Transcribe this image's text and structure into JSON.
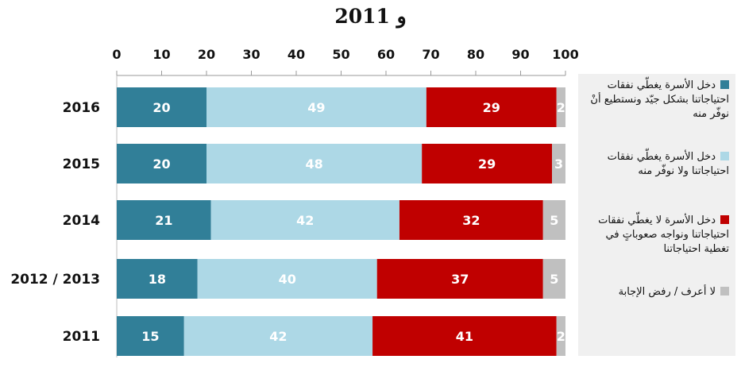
{
  "chart_data": {
    "type": "bar",
    "orientation": "horizontal",
    "stacked": true,
    "title": "و 2011",
    "categories": [
      "2016",
      "2015",
      "2014",
      "2012 / 2013",
      "2011"
    ],
    "xlim": [
      0,
      100
    ],
    "xticks": [
      "0",
      "10",
      "20",
      "30",
      "40",
      "50",
      "60",
      "70",
      "80",
      "90",
      "100"
    ],
    "grid": false,
    "legend_position": "right",
    "series": [
      {
        "name": "دخل الأسرة يغطّي نفقات احتياجاتنا بشكل جيّد ونستطيع أنْ نوفّر منه",
        "color": "#317f98",
        "values": [
          20,
          20,
          21,
          18,
          15
        ]
      },
      {
        "name": "دخل الأسرة يغطّي نفقات احتياجاتنا ولا نوفّر منه",
        "color": "#add8e6",
        "values": [
          49,
          48,
          42,
          40,
          42
        ]
      },
      {
        "name": "دخل الأسرة لا يغطّي نفقات احتياجاتنا ونواجه صعوباتٍ في تغطية احتياجاتنا",
        "color": "#c00000",
        "values": [
          29,
          29,
          32,
          37,
          41
        ]
      },
      {
        "name": "لا أعرف / رفض الإجابة",
        "color": "#c0c0c0",
        "values": [
          2,
          3,
          5,
          5,
          2
        ]
      }
    ]
  }
}
